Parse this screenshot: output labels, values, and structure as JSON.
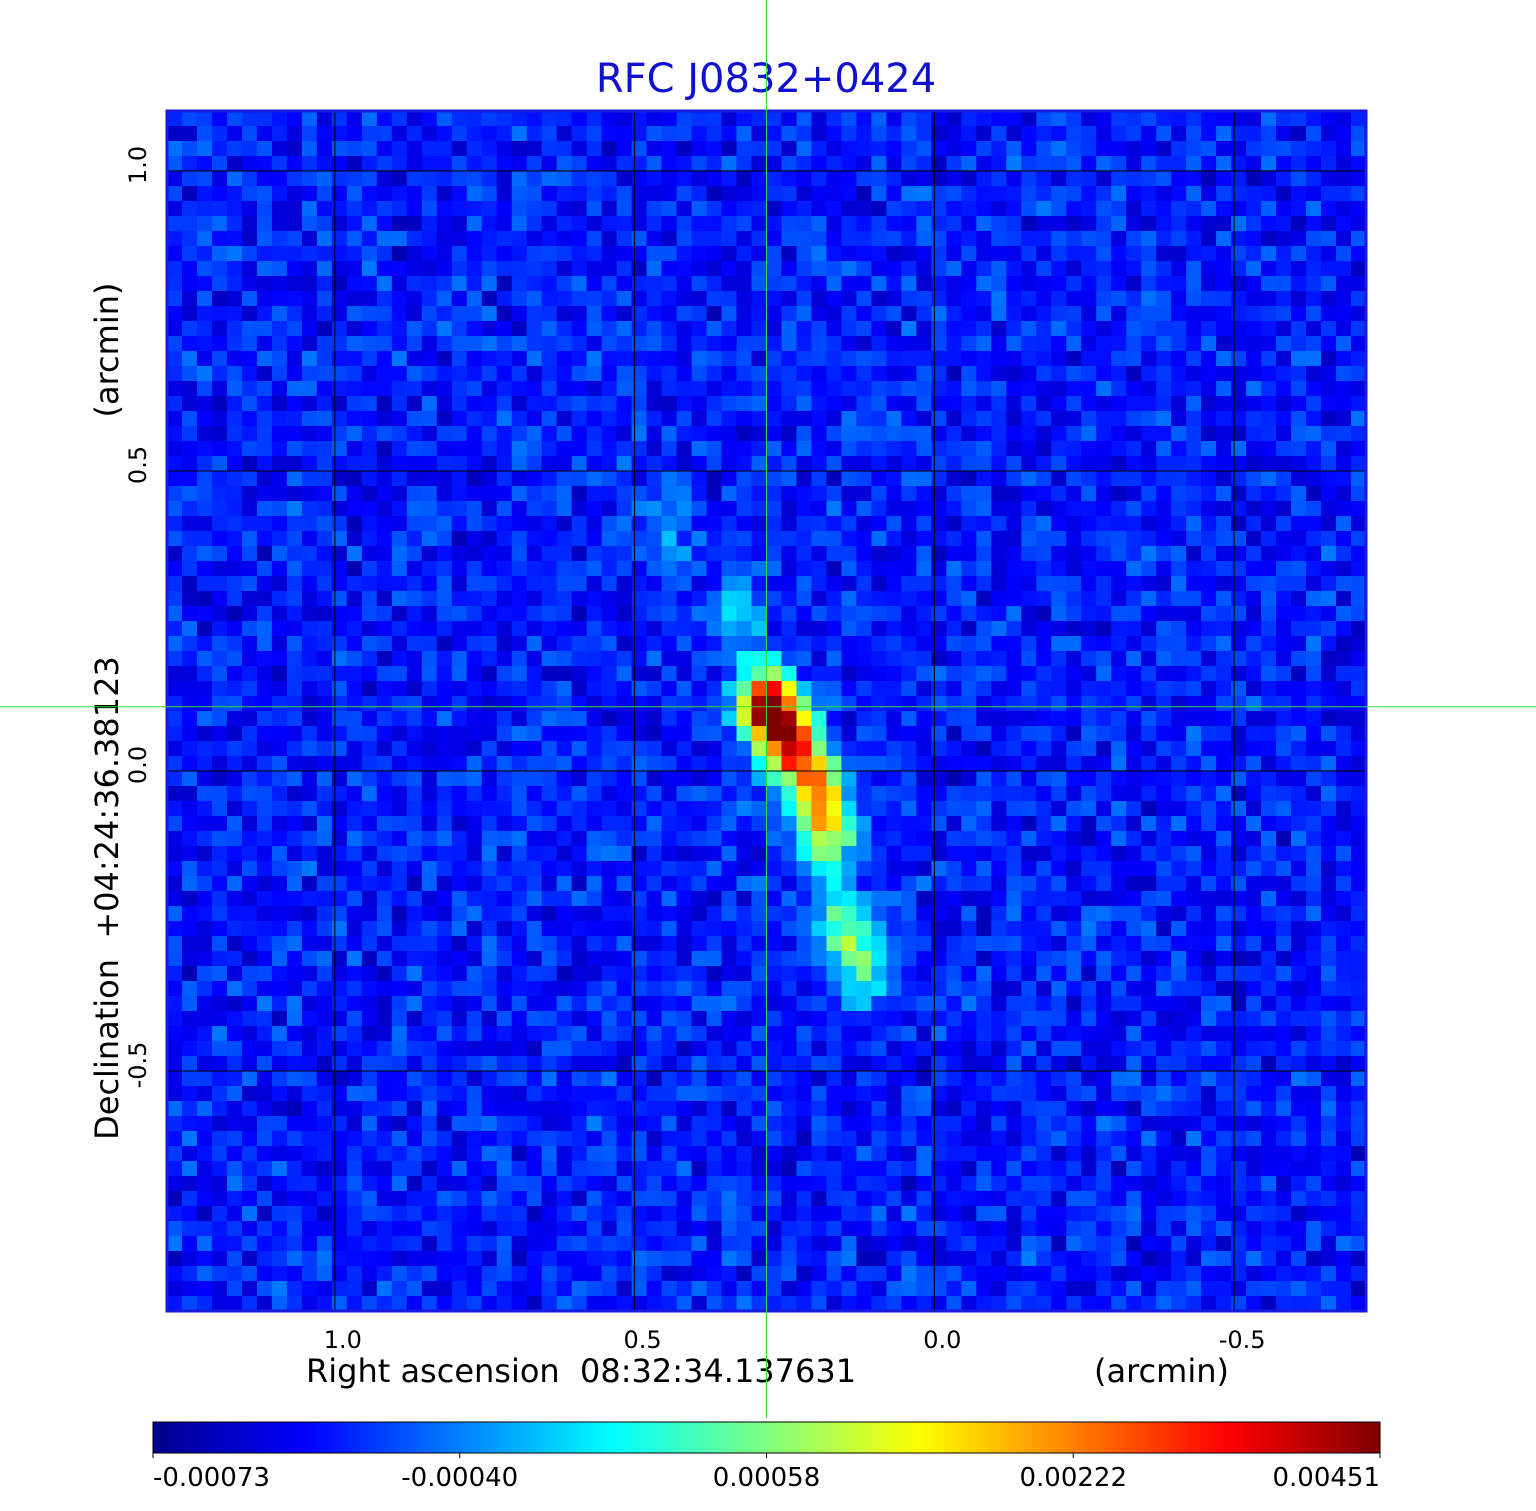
{
  "chart_data": {
    "type": "heatmap",
    "title": "RFC J0832+0424",
    "xlabel": "Right ascension  08:32:34.137631",
    "xunit": "(arcmin)",
    "ylabel": "Declination  +04:24:36.38123",
    "yunit": "(arcmin)",
    "x_ticks": [
      "1.0",
      "0.5",
      "0.0",
      "-0.5"
    ],
    "y_ticks": [
      "1.0",
      "0.5",
      "0.0",
      "-0.5"
    ],
    "xlim": [
      1.28,
      -0.72
    ],
    "ylim": [
      -0.9,
      1.1
    ],
    "x_tick_values": [
      1.0,
      0.5,
      0.0,
      -0.5
    ],
    "y_tick_values": [
      1.0,
      0.5,
      0.0,
      -0.5
    ],
    "grid": true,
    "crosshair": {
      "x": 0.28,
      "y": 0.107
    },
    "colormap": "jet",
    "colorbar": {
      "ticks": [
        "-0.00073",
        "-0.00040",
        "0.00058",
        "0.00222",
        "0.00451"
      ],
      "tick_values": [
        -0.00073,
        -0.0004,
        0.00058,
        0.00222,
        0.00451
      ]
    },
    "source_component": [
      {
        "x": 0.28,
        "y": 0.107,
        "value": 0.00451
      },
      {
        "x": 0.24,
        "y": 0.05,
        "value": 0.0035
      },
      {
        "x": 0.2,
        "y": -0.02,
        "value": 0.0028
      },
      {
        "x": 0.18,
        "y": -0.1,
        "value": 0.0026
      },
      {
        "x": 0.15,
        "y": -0.25,
        "value": 0.0018
      },
      {
        "x": 0.12,
        "y": -0.33,
        "value": 0.0016
      },
      {
        "x": 0.33,
        "y": 0.25,
        "value": 0.0012
      },
      {
        "x": 0.45,
        "y": 0.4,
        "value": 0.0009
      }
    ],
    "colors": {
      "frame": "#1a1adc",
      "grid": "#000000",
      "crosshair": "#33dd33",
      "title": "#1010d0"
    }
  }
}
